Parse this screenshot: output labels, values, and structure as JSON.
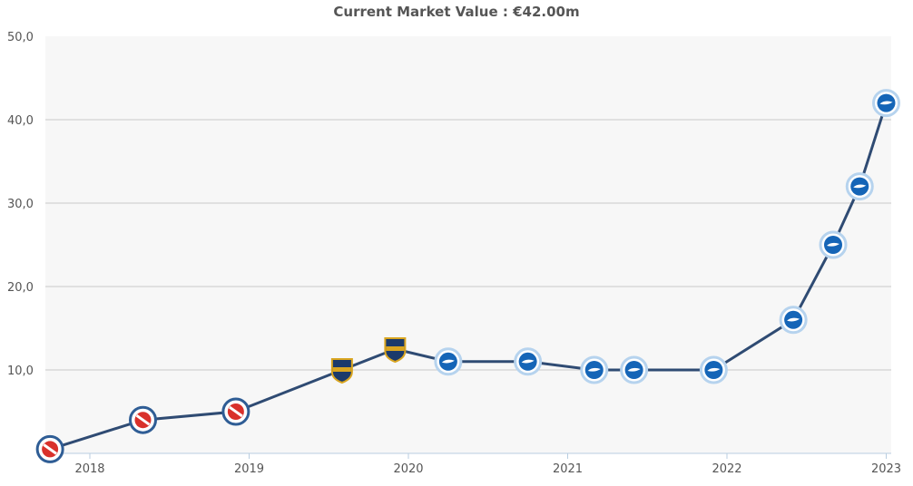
{
  "chart_data": {
    "type": "line",
    "title": "Current Market Value : €42.00m",
    "xlabel": "",
    "ylabel": "",
    "x_ticks": [
      "2018",
      "2019",
      "2020",
      "2021",
      "2022",
      "2023"
    ],
    "y_ticks": [
      "50,0",
      "40,0",
      "30,0",
      "20,0",
      "10,0"
    ],
    "ylim": [
      0,
      50
    ],
    "grid": true,
    "legend": "none",
    "series": [
      {
        "values": [
          {
            "x": "2017-10",
            "y": 0.5,
            "club": "argentinos"
          },
          {
            "x": "2018-05",
            "y": 4.0,
            "club": "argentinos"
          },
          {
            "x": "2018-12",
            "y": 5.0,
            "club": "argentinos"
          },
          {
            "x": "2019-08",
            "y": 10.0,
            "club": "boca"
          },
          {
            "x": "2019-12",
            "y": 12.5,
            "club": "boca"
          },
          {
            "x": "2020-04",
            "y": 11.0,
            "club": "brighton"
          },
          {
            "x": "2020-10",
            "y": 11.0,
            "club": "brighton"
          },
          {
            "x": "2021-03",
            "y": 10.0,
            "club": "brighton"
          },
          {
            "x": "2021-06",
            "y": 10.0,
            "club": "brighton"
          },
          {
            "x": "2021-12",
            "y": 10.0,
            "club": "brighton"
          },
          {
            "x": "2022-06",
            "y": 16.0,
            "club": "brighton"
          },
          {
            "x": "2022-09",
            "y": 25.0,
            "club": "brighton"
          },
          {
            "x": "2022-11",
            "y": 32.0,
            "club": "brighton"
          },
          {
            "x": "2023-01",
            "y": 42.0,
            "club": "brighton"
          }
        ]
      }
    ],
    "colors": {
      "line": "#2f4b73",
      "grid": "#c8c8c8",
      "plot_background": "#f7f7f7",
      "argentinos": "#d9312b",
      "boca": "#1b3a6b",
      "boca_trim": "#d9a520",
      "brighton": "#1565b7"
    }
  }
}
